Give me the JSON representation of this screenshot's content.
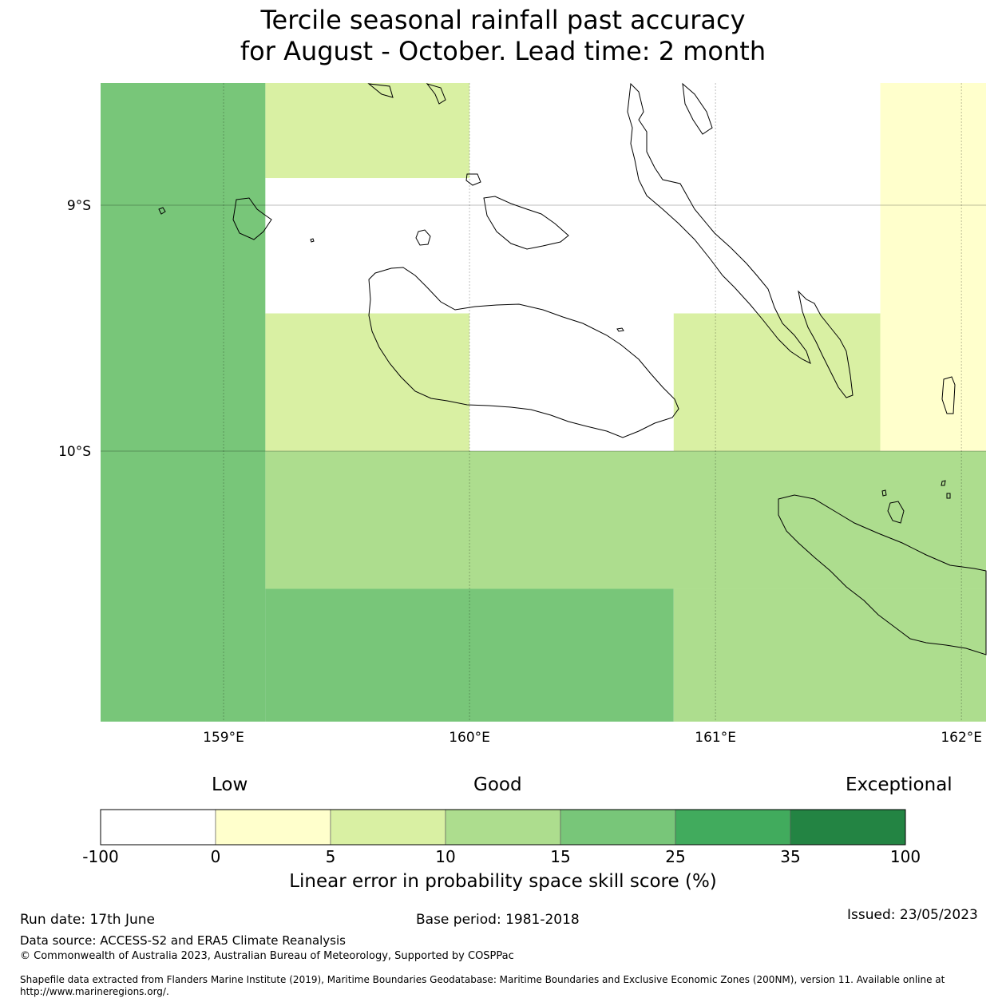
{
  "title": {
    "line1": "Tercile seasonal rainfall past accuracy",
    "line2": "for August - October. Lead time: 2 month"
  },
  "map": {
    "lat_labels": [
      "9°S",
      "10°S"
    ],
    "lon_labels": [
      "159°E",
      "160°E",
      "161°E",
      "162°E"
    ],
    "extent": {
      "lon_min": 158.5,
      "lon_max": 162.1,
      "lat_min": -11.1,
      "lat_max": -8.5
    },
    "grid_cells": [
      {
        "lon": [
          158.5,
          159.17
        ],
        "lat": [
          -11.1,
          -8.5
        ],
        "category": "15-25"
      },
      {
        "lon": [
          159.17,
          160.0
        ],
        "lat": [
          -8.89,
          -8.5
        ],
        "category": "5-10"
      },
      {
        "lon": [
          159.17,
          160.0
        ],
        "lat": [
          -9.44,
          -8.89
        ],
        "category": "<0"
      },
      {
        "lon": [
          160.0,
          161.67
        ],
        "lat": [
          -9.44,
          -8.5
        ],
        "category": "<0"
      },
      {
        "lon": [
          159.17,
          160.0
        ],
        "lat": [
          -10.0,
          -9.44
        ],
        "category": "5-10"
      },
      {
        "lon": [
          160.0,
          160.83
        ],
        "lat": [
          -10.0,
          -9.44
        ],
        "category": "<0"
      },
      {
        "lon": [
          160.83,
          161.67
        ],
        "lat": [
          -10.0,
          -9.44
        ],
        "category": "5-10"
      },
      {
        "lon": [
          161.67,
          162.1
        ],
        "lat": [
          -10.0,
          -8.5
        ],
        "category": "0-5"
      },
      {
        "lon": [
          159.17,
          162.1
        ],
        "lat": [
          -10.56,
          -10.0
        ],
        "category": "10-15"
      },
      {
        "lon": [
          159.17,
          160.83
        ],
        "lat": [
          -11.1,
          -10.56
        ],
        "category": "15-25"
      },
      {
        "lon": [
          160.83,
          162.1
        ],
        "lat": [
          -11.1,
          -10.56
        ],
        "category": "10-15"
      }
    ]
  },
  "colorbar": {
    "categories": [
      "Low",
      "Good",
      "Exceptional"
    ],
    "ticks": [
      "-100",
      "0",
      "5",
      "10",
      "15",
      "25",
      "35",
      "100"
    ],
    "colors": [
      "#ffffff",
      "#ffffcc",
      "#d9f0a3",
      "#addd8e",
      "#78c679",
      "#41ab5d",
      "#238443"
    ],
    "bins": [
      "<0",
      "0-5",
      "5-10",
      "10-15",
      "15-25",
      "25-35",
      "35-100"
    ],
    "label": "Linear error in probability space skill score (%)"
  },
  "footer": {
    "run_date": "Run date: 17th June",
    "base_period": "Base period: 1981-2018",
    "issued": "Issued: 23/05/2023",
    "data_source": "Data source: ACCESS-S2 and ERA5 Climate Reanalysis",
    "copyright": "© Commonwealth of Australia 2023, Australian Bureau of Meteorology, Supported by COSPPac",
    "shapefile": "Shapefile data extracted from Flanders Marine Institute (2019), Maritime Boundaries Geodatabase: Maritime Boundaries and Exclusive Economic Zones (200NM), version 11. Available online at http://www.marineregions.org/."
  }
}
